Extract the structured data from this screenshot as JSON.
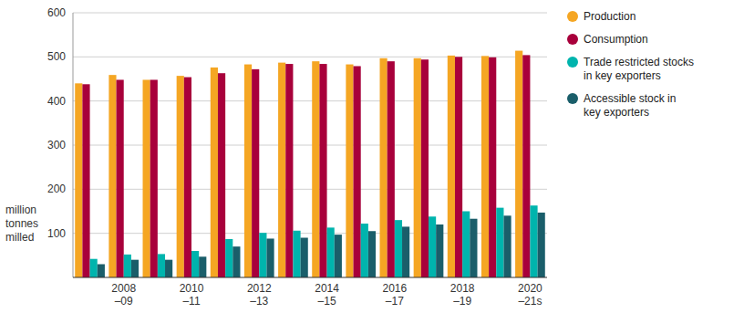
{
  "chart_data": {
    "type": "bar",
    "y_label": "million\ntonnes\nmilled",
    "categories": [
      null,
      "2008\n–09",
      null,
      "2010\n–11",
      null,
      "2012\n–13",
      null,
      "2014\n–15",
      null,
      "2016\n–17",
      null,
      "2018\n–19",
      null,
      "2020\n–21s"
    ],
    "series": [
      {
        "name": "Production",
        "color": "#F5A623",
        "values": [
          440,
          459,
          448,
          457,
          476,
          483,
          487,
          490,
          483,
          497,
          497,
          503,
          502,
          514
        ]
      },
      {
        "name": "Consumption",
        "color": "#A8003B",
        "values": [
          438,
          448,
          448,
          454,
          463,
          472,
          484,
          484,
          479,
          490,
          494,
          500,
          499,
          504
        ]
      },
      {
        "name": "Trade restricted stocks\nin key exporters",
        "color": "#00B4AD",
        "values": [
          42,
          52,
          53,
          60,
          87,
          101,
          106,
          113,
          122,
          130,
          138,
          150,
          158,
          163
        ]
      },
      {
        "name": "Accessible stock in\nkey exporters",
        "color": "#1A5E6A",
        "values": [
          30,
          40,
          40,
          47,
          70,
          88,
          90,
          97,
          105,
          115,
          120,
          133,
          140,
          147
        ]
      }
    ],
    "ylim": [
      0,
      600
    ],
    "yticks": [
      100,
      200,
      300,
      400,
      500,
      600
    ],
    "grid": true,
    "legend": "right"
  }
}
